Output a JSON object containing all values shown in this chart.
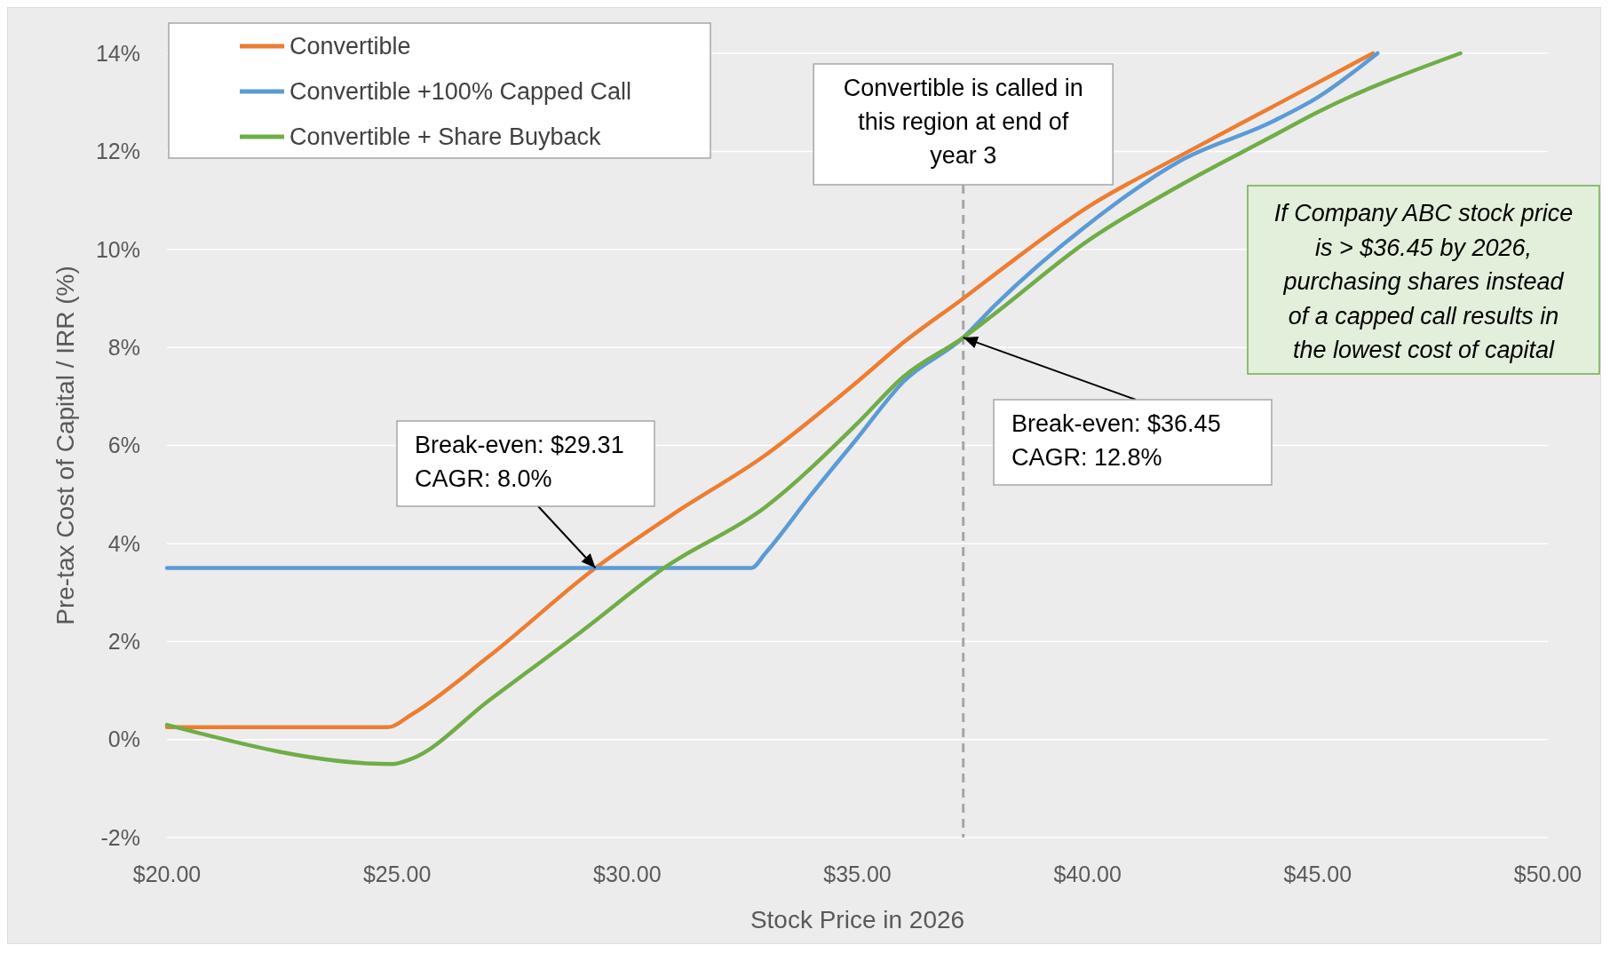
{
  "chart_data": {
    "type": "line",
    "xlabel": "Stock Price in 2026",
    "ylabel": "Pre-tax Cost of Capital / IRR (%)",
    "xlim": [
      20,
      50
    ],
    "ylim": [
      -2,
      14
    ],
    "xticks": [
      {
        "value": 20,
        "label": "$20.00"
      },
      {
        "value": 25,
        "label": "$25.00"
      },
      {
        "value": 30,
        "label": "$30.00"
      },
      {
        "value": 35,
        "label": "$35.00"
      },
      {
        "value": 40,
        "label": "$40.00"
      },
      {
        "value": 45,
        "label": "$45.00"
      },
      {
        "value": 50,
        "label": "$50.00"
      }
    ],
    "yticks": [
      {
        "value": -2,
        "label": "-2%"
      },
      {
        "value": 0,
        "label": "0%"
      },
      {
        "value": 2,
        "label": "2%"
      },
      {
        "value": 4,
        "label": "4%"
      },
      {
        "value": 6,
        "label": "6%"
      },
      {
        "value": 8,
        "label": "8%"
      },
      {
        "value": 10,
        "label": "10%"
      },
      {
        "value": 12,
        "label": "12%"
      },
      {
        "value": 14,
        "label": "14%"
      }
    ],
    "grid": "y",
    "legend": "top left",
    "line_style": "solid",
    "marker": "none",
    "series": [
      {
        "name": "Convertible",
        "color": "#ed7d31",
        "x": [
          20,
          24.8,
          25.3,
          27,
          29.31,
          31,
          33,
          35,
          36,
          37.3,
          38,
          40,
          42,
          44,
          45,
          46.2
        ],
        "values": [
          0.25,
          0.25,
          0.5,
          1.7,
          3.5,
          4.6,
          5.8,
          7.3,
          8.1,
          9.0,
          9.5,
          10.86,
          11.9,
          12.9,
          13.4,
          14
        ]
      },
      {
        "name": "Convertible +100% Capped Call",
        "color": "#5b9bd5",
        "x": [
          20,
          32.7,
          33,
          34,
          35,
          36,
          37.3,
          38,
          40,
          42,
          44,
          45,
          46.3
        ],
        "values": [
          3.5,
          3.5,
          3.8,
          5.0,
          6.15,
          7.3,
          8.2,
          8.87,
          10.5,
          11.8,
          12.6,
          13.1,
          14
        ]
      },
      {
        "name": "Convertible + Share Buyback",
        "color": "#70ad47",
        "x": [
          20,
          24.9,
          25.3,
          27,
          29,
          30.8,
          33,
          35,
          36,
          37.3,
          38,
          40,
          42,
          44,
          45,
          48.1
        ],
        "values": [
          0.3,
          -0.5,
          -0.4,
          0.8,
          2.2,
          3.5,
          4.74,
          6.45,
          7.4,
          8.2,
          8.7,
          10.17,
          11.3,
          12.3,
          12.8,
          14
        ]
      }
    ],
    "ref_lines": [
      {
        "axis": "x",
        "value": 37.3,
        "label": "Convertible is called in this region at end of year 3",
        "color": "#a6a6a6",
        "line_style": "dashed"
      }
    ],
    "annotations": [
      {
        "text": "Break-even: $29.31 CAGR: 8.0%",
        "x": 29.31,
        "y": 3.5
      },
      {
        "text": "Break-even: $36.45 CAGR: 12.8%",
        "x": 37.3,
        "y": 8.2
      },
      "If Company ABC stock price is > $36.45 by 2026, purchasing shares instead of a capped call results in the lowest cost of capital"
    ]
  }
}
